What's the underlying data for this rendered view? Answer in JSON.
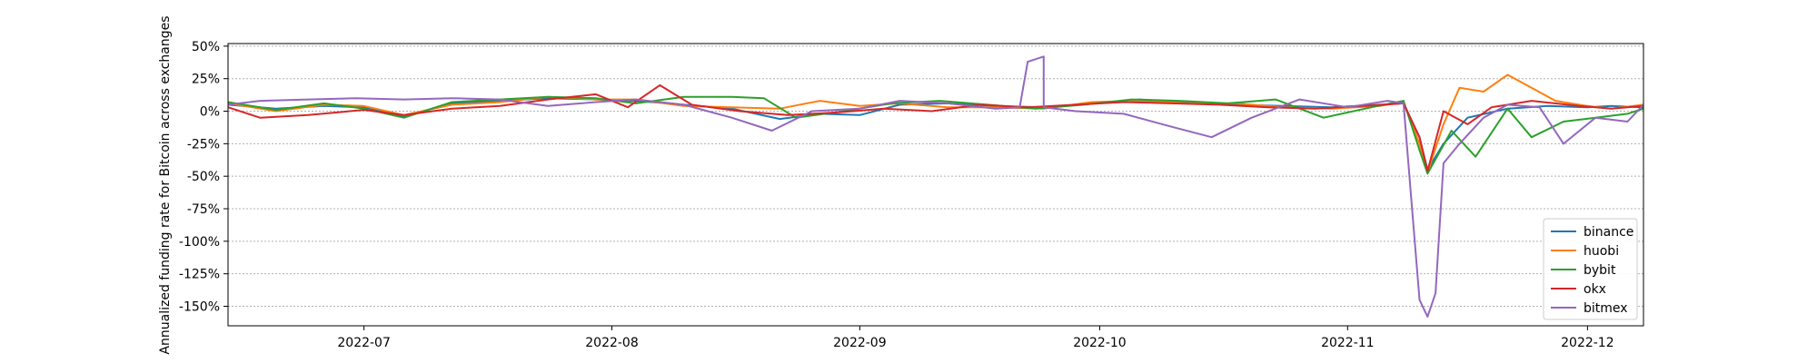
{
  "chart_data": {
    "type": "line",
    "title": "",
    "xlabel": "",
    "ylabel": "Annualized funding rate for Bitcoin across exchanges",
    "x_ticks": [
      "2022-07",
      "2022-08",
      "2022-09",
      "2022-10",
      "2022-11",
      "2022-12"
    ],
    "y_ticks": [
      "50%",
      "25%",
      "0%",
      "-25%",
      "-50%",
      "-75%",
      "-100%",
      "-125%",
      "-150%"
    ],
    "xlim": [
      "2022-06-14",
      "2022-12-08"
    ],
    "ylim": [
      -165,
      52
    ],
    "grid": "horizontal dotted",
    "legend_position": "lower-right",
    "series": [
      {
        "name": "binance",
        "color": "#1f77b4",
        "points": [
          [
            "2022-06-14",
            5
          ],
          [
            "2022-06-20",
            2
          ],
          [
            "2022-06-26",
            4
          ],
          [
            "2022-07-01",
            3
          ],
          [
            "2022-07-06",
            -4
          ],
          [
            "2022-07-12",
            6
          ],
          [
            "2022-07-18",
            8
          ],
          [
            "2022-07-24",
            10
          ],
          [
            "2022-07-30",
            9
          ],
          [
            "2022-08-04",
            8
          ],
          [
            "2022-08-10",
            5
          ],
          [
            "2022-08-16",
            2
          ],
          [
            "2022-08-22",
            -6
          ],
          [
            "2022-08-27",
            -2
          ],
          [
            "2022-09-01",
            -3
          ],
          [
            "2022-09-06",
            5
          ],
          [
            "2022-09-12",
            6
          ],
          [
            "2022-09-18",
            4
          ],
          [
            "2022-09-24",
            3
          ],
          [
            "2022-09-30",
            6
          ],
          [
            "2022-10-06",
            9
          ],
          [
            "2022-10-12",
            7
          ],
          [
            "2022-10-18",
            5
          ],
          [
            "2022-10-24",
            4
          ],
          [
            "2022-10-30",
            3
          ],
          [
            "2022-11-05",
            5
          ],
          [
            "2022-11-08",
            6
          ],
          [
            "2022-11-10",
            -20
          ],
          [
            "2022-11-11",
            -45
          ],
          [
            "2022-11-13",
            -25
          ],
          [
            "2022-11-16",
            -5
          ],
          [
            "2022-11-21",
            2
          ],
          [
            "2022-11-26",
            4
          ],
          [
            "2022-12-01",
            3
          ],
          [
            "2022-12-04",
            4
          ],
          [
            "2022-12-08",
            3
          ]
        ]
      },
      {
        "name": "huobi",
        "color": "#ff7f0e",
        "points": [
          [
            "2022-06-14",
            6
          ],
          [
            "2022-06-20",
            0
          ],
          [
            "2022-06-26",
            5
          ],
          [
            "2022-07-01",
            4
          ],
          [
            "2022-07-06",
            -3
          ],
          [
            "2022-07-12",
            5
          ],
          [
            "2022-07-18",
            7
          ],
          [
            "2022-07-24",
            11
          ],
          [
            "2022-07-30",
            9
          ],
          [
            "2022-08-04",
            9
          ],
          [
            "2022-08-10",
            4
          ],
          [
            "2022-08-16",
            3
          ],
          [
            "2022-08-22",
            2
          ],
          [
            "2022-08-27",
            8
          ],
          [
            "2022-09-01",
            4
          ],
          [
            "2022-09-06",
            6
          ],
          [
            "2022-09-12",
            3
          ],
          [
            "2022-09-18",
            3
          ],
          [
            "2022-09-24",
            2
          ],
          [
            "2022-09-30",
            7
          ],
          [
            "2022-10-06",
            8
          ],
          [
            "2022-10-12",
            6
          ],
          [
            "2022-10-18",
            6
          ],
          [
            "2022-10-24",
            3
          ],
          [
            "2022-10-30",
            2
          ],
          [
            "2022-11-05",
            4
          ],
          [
            "2022-11-08",
            7
          ],
          [
            "2022-11-10",
            -25
          ],
          [
            "2022-11-11",
            -47
          ],
          [
            "2022-11-13",
            -10
          ],
          [
            "2022-11-15",
            18
          ],
          [
            "2022-11-18",
            15
          ],
          [
            "2022-11-21",
            28
          ],
          [
            "2022-11-24",
            18
          ],
          [
            "2022-11-27",
            8
          ],
          [
            "2022-12-01",
            4
          ],
          [
            "2022-12-04",
            2
          ],
          [
            "2022-12-08",
            5
          ]
        ]
      },
      {
        "name": "bybit",
        "color": "#2ca02c",
        "points": [
          [
            "2022-06-14",
            7
          ],
          [
            "2022-06-20",
            1
          ],
          [
            "2022-06-26",
            6
          ],
          [
            "2022-07-01",
            2
          ],
          [
            "2022-07-06",
            -5
          ],
          [
            "2022-07-12",
            7
          ],
          [
            "2022-07-18",
            9
          ],
          [
            "2022-07-24",
            11
          ],
          [
            "2022-07-30",
            10
          ],
          [
            "2022-08-04",
            6
          ],
          [
            "2022-08-10",
            11
          ],
          [
            "2022-08-16",
            11
          ],
          [
            "2022-08-20",
            10
          ],
          [
            "2022-08-24",
            -5
          ],
          [
            "2022-08-30",
            0
          ],
          [
            "2022-09-05",
            6
          ],
          [
            "2022-09-11",
            8
          ],
          [
            "2022-09-17",
            5
          ],
          [
            "2022-09-23",
            2
          ],
          [
            "2022-09-29",
            5
          ],
          [
            "2022-10-05",
            9
          ],
          [
            "2022-10-11",
            8
          ],
          [
            "2022-10-17",
            6
          ],
          [
            "2022-10-23",
            9
          ],
          [
            "2022-10-29",
            -5
          ],
          [
            "2022-11-04",
            3
          ],
          [
            "2022-11-08",
            8
          ],
          [
            "2022-11-10",
            -30
          ],
          [
            "2022-11-11",
            -48
          ],
          [
            "2022-11-14",
            -15
          ],
          [
            "2022-11-17",
            -35
          ],
          [
            "2022-11-21",
            2
          ],
          [
            "2022-11-24",
            -20
          ],
          [
            "2022-11-28",
            -8
          ],
          [
            "2022-12-02",
            -5
          ],
          [
            "2022-12-06",
            -2
          ],
          [
            "2022-12-08",
            2
          ]
        ]
      },
      {
        "name": "okx",
        "color": "#d62728",
        "points": [
          [
            "2022-06-14",
            3
          ],
          [
            "2022-06-18",
            -5
          ],
          [
            "2022-06-24",
            -3
          ],
          [
            "2022-07-01",
            1
          ],
          [
            "2022-07-06",
            -3
          ],
          [
            "2022-07-12",
            2
          ],
          [
            "2022-07-18",
            4
          ],
          [
            "2022-07-24",
            9
          ],
          [
            "2022-07-30",
            13
          ],
          [
            "2022-08-03",
            3
          ],
          [
            "2022-08-07",
            20
          ],
          [
            "2022-08-11",
            5
          ],
          [
            "2022-08-17",
            0
          ],
          [
            "2022-08-23",
            -3
          ],
          [
            "2022-08-29",
            -1
          ],
          [
            "2022-09-04",
            2
          ],
          [
            "2022-09-10",
            0
          ],
          [
            "2022-09-16",
            5
          ],
          [
            "2022-09-22",
            3
          ],
          [
            "2022-09-28",
            5
          ],
          [
            "2022-10-04",
            7
          ],
          [
            "2022-10-10",
            6
          ],
          [
            "2022-10-16",
            5
          ],
          [
            "2022-10-22",
            3
          ],
          [
            "2022-10-28",
            2
          ],
          [
            "2022-11-03",
            4
          ],
          [
            "2022-11-08",
            6
          ],
          [
            "2022-11-10",
            -20
          ],
          [
            "2022-11-11",
            -46
          ],
          [
            "2022-11-13",
            0
          ],
          [
            "2022-11-16",
            -10
          ],
          [
            "2022-11-19",
            3
          ],
          [
            "2022-11-24",
            8
          ],
          [
            "2022-11-30",
            4
          ],
          [
            "2022-12-04",
            2
          ],
          [
            "2022-12-08",
            4
          ]
        ]
      },
      {
        "name": "bitmex",
        "color": "#9467bd",
        "points": [
          [
            "2022-06-14",
            5
          ],
          [
            "2022-06-18",
            8
          ],
          [
            "2022-06-24",
            9
          ],
          [
            "2022-06-30",
            10
          ],
          [
            "2022-07-06",
            9
          ],
          [
            "2022-07-12",
            10
          ],
          [
            "2022-07-18",
            9
          ],
          [
            "2022-07-24",
            4
          ],
          [
            "2022-07-30",
            7
          ],
          [
            "2022-08-04",
            9
          ],
          [
            "2022-08-10",
            5
          ],
          [
            "2022-08-16",
            -5
          ],
          [
            "2022-08-21",
            -15
          ],
          [
            "2022-08-26",
            0
          ],
          [
            "2022-09-01",
            2
          ],
          [
            "2022-09-06",
            8
          ],
          [
            "2022-09-12",
            6
          ],
          [
            "2022-09-18",
            2
          ],
          [
            "2022-09-21",
            3
          ],
          [
            "2022-09-22",
            38
          ],
          [
            "2022-09-24",
            42
          ],
          [
            "2022-09-24",
            3
          ],
          [
            "2022-09-28",
            0
          ],
          [
            "2022-10-04",
            -2
          ],
          [
            "2022-10-10",
            -12
          ],
          [
            "2022-10-15",
            -20
          ],
          [
            "2022-10-20",
            -5
          ],
          [
            "2022-10-26",
            9
          ],
          [
            "2022-11-01",
            3
          ],
          [
            "2022-11-06",
            8
          ],
          [
            "2022-11-08",
            6
          ],
          [
            "2022-11-09",
            -70
          ],
          [
            "2022-11-10",
            -145
          ],
          [
            "2022-11-11",
            -158
          ],
          [
            "2022-11-12",
            -140
          ],
          [
            "2022-11-13",
            -40
          ],
          [
            "2022-11-15",
            -25
          ],
          [
            "2022-11-18",
            -5
          ],
          [
            "2022-11-21",
            5
          ],
          [
            "2022-11-25",
            3
          ],
          [
            "2022-11-28",
            -25
          ],
          [
            "2022-12-02",
            -5
          ],
          [
            "2022-12-06",
            -8
          ],
          [
            "2022-12-08",
            5
          ]
        ]
      }
    ]
  }
}
